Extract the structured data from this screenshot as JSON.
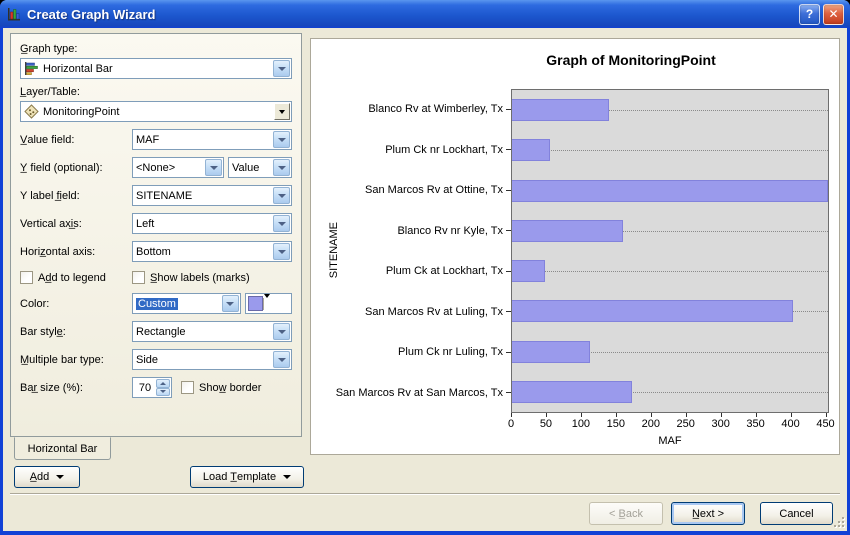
{
  "window": {
    "title": "Create Graph Wizard",
    "help_label": "?",
    "close_label": "✕"
  },
  "form": {
    "graph_type": {
      "label": "G̲raph type:",
      "value": "Horizontal Bar"
    },
    "layer_table": {
      "label": "L̲ayer/Table:",
      "value": "MonitoringPoint"
    },
    "value_field": {
      "label": "V̲alue field:",
      "value": "MAF"
    },
    "y_field": {
      "label": "Y̲ field (optional):",
      "value": "<None>",
      "series_value": "Value"
    },
    "y_label_field": {
      "label": "Y label f̲ield:",
      "value": "SITENAME"
    },
    "vertical_axis": {
      "label": "Vertical axi̲s:",
      "value": "Left"
    },
    "horizontal_axis": {
      "label": "Horiz̲ontal axis:",
      "value": "Bottom"
    },
    "add_to_legend": {
      "label": "Ad̲d to legend",
      "checked": false
    },
    "show_labels": {
      "label": "S̲how labels (marks)",
      "checked": false
    },
    "color": {
      "label": "Color:",
      "value": "Custom",
      "swatch": "#9A9AEC"
    },
    "bar_style": {
      "label": "Bar style̲:",
      "value": "Rectangle"
    },
    "multiple_bar_type": {
      "label": "M̲ultiple bar type:",
      "value": "Side"
    },
    "bar_size": {
      "label": "Bar̲ size (%):",
      "value": "70"
    },
    "show_border": {
      "label": "Show̲ border",
      "checked": false
    }
  },
  "tabs": {
    "active": "Horizontal Bar"
  },
  "footer": {
    "add": "A̲dd",
    "load_template": "Load T̲emplate",
    "back": "< B̲ack",
    "next": "N̲ext >",
    "cancel": "Cancel"
  },
  "chart_data": {
    "type": "bar",
    "orientation": "horizontal",
    "title": "Graph of MonitoringPoint",
    "xlabel": "MAF",
    "ylabel": "SITENAME",
    "categories": [
      "Blanco Rv at Wimberley, Tx",
      "Plum Ck nr Lockhart, Tx",
      "San Marcos Rv at Ottine, Tx",
      "Blanco Rv nr Kyle, Tx",
      "Plum Ck at Lockhart, Tx",
      "San Marcos Rv at Luling, Tx",
      "Plum Ck nr Luling, Tx",
      "San Marcos Rv at San Marcos, Tx"
    ],
    "values": [
      140,
      55,
      455,
      160,
      47,
      405,
      112,
      173
    ],
    "xlim": [
      0,
      455
    ],
    "xticks": [
      0,
      50,
      100,
      150,
      200,
      250,
      300,
      350,
      400,
      450
    ],
    "bar_color": "#9A9AEC",
    "plot_bg": "#DADADA",
    "grid": "dotted-horizontal",
    "legend": "none"
  }
}
